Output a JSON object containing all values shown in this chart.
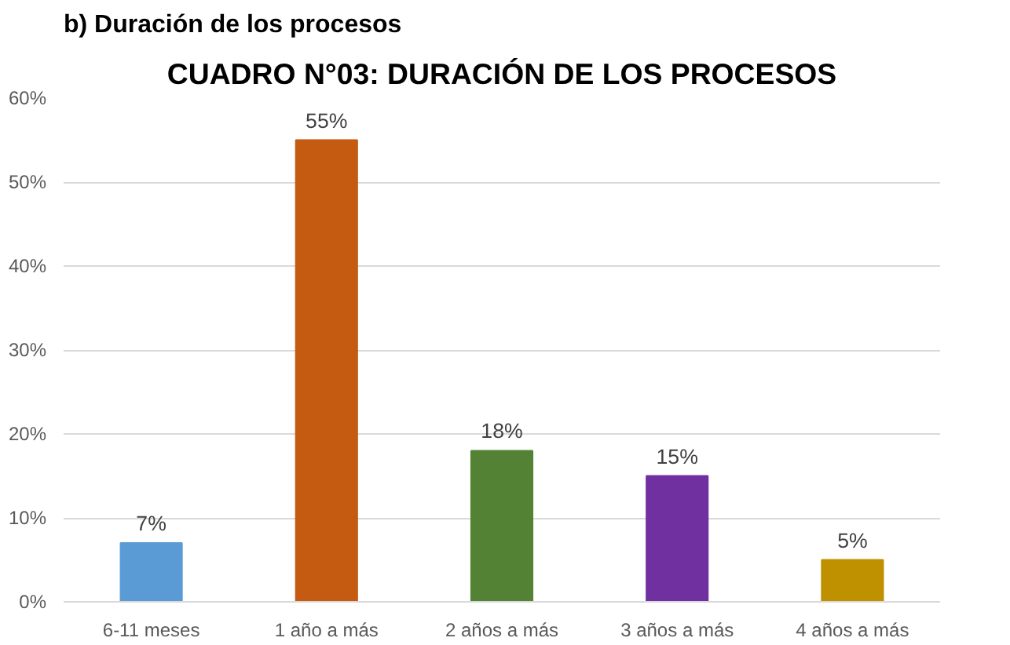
{
  "chart_data": {
    "type": "bar",
    "title": "CUADRO N°03: DURACIÓN DE LOS PROCESOS",
    "annotations": [
      "b)  Duración de los procesos"
    ],
    "categories": [
      "6-11 meses",
      "1 año a más",
      "2 años a más",
      "3 años a más",
      "4 años a más"
    ],
    "values": [
      7,
      55,
      18,
      15,
      5
    ],
    "colors": [
      "#5b9bd5",
      "#c55a11",
      "#548235",
      "#7030a0",
      "#bf9000"
    ],
    "value_labels": [
      "7%",
      "55%",
      "18%",
      "15%",
      "5%"
    ],
    "ylim": [
      0,
      60
    ],
    "yticks": [
      {
        "value": 0,
        "label": "0%"
      },
      {
        "value": 10,
        "label": "10%"
      },
      {
        "value": 20,
        "label": "20%"
      },
      {
        "value": 30,
        "label": "30%"
      },
      {
        "value": 40,
        "label": "40%"
      },
      {
        "value": 50,
        "label": "50%"
      },
      {
        "value": 60,
        "label": "60%"
      }
    ],
    "grid": "y"
  }
}
